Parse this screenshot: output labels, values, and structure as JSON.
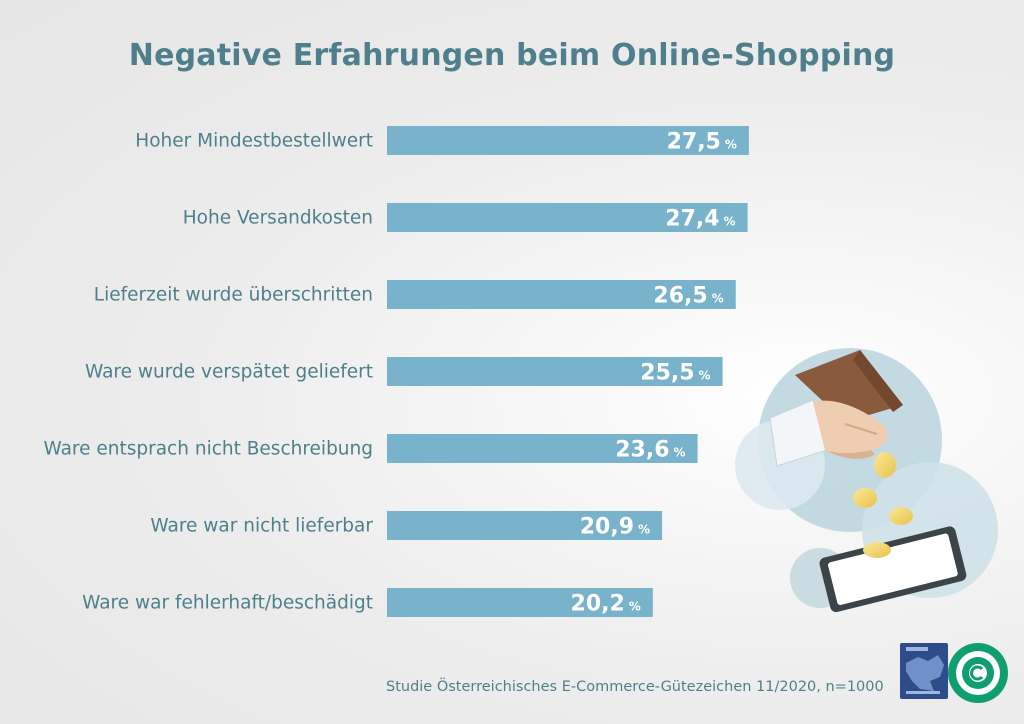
{
  "chart_data": {
    "type": "bar",
    "orientation": "horizontal",
    "title": "Negative Erfahrungen beim Online-Shopping",
    "categories": [
      "Hoher Mindestbestellwert",
      "Hohe Versandkosten",
      "Lieferzeit wurde überschritten",
      "Ware wurde verspätet geliefert",
      "Ware entsprach nicht Beschreibung",
      "Ware war nicht lieferbar",
      "Ware war fehlerhaft/beschädigt"
    ],
    "values": [
      27.5,
      27.4,
      26.5,
      25.5,
      23.6,
      20.9,
      20.2
    ],
    "value_labels": [
      "27,5",
      "27,4",
      "26,5",
      "25,5",
      "23,6",
      "20,9",
      "20,2"
    ],
    "unit": "%",
    "bar_color": "#78b3cb",
    "grid": false,
    "legend": "none"
  },
  "source": "Studie Österreichisches E-Commerce-Gütezeichen 11/2020, n=1000",
  "illustration": "hand-dropping-coins-onto-tablet-icon",
  "logos": [
    "trustmark-europe-logo",
    "oesterreichisches-e-commerce-guetezeichen-logo"
  ],
  "colors": {
    "title": "#4f7f8c",
    "label": "#4d7f8c",
    "bar": "#78b3cb",
    "background": "#e8e8e8"
  }
}
